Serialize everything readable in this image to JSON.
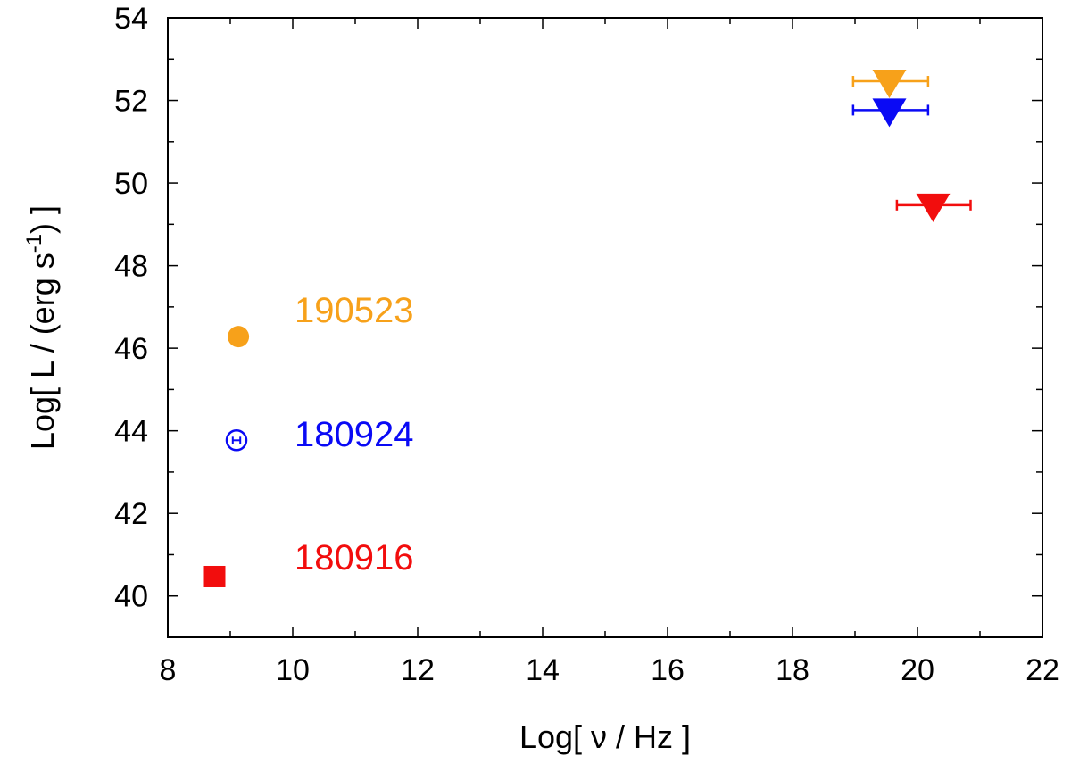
{
  "chart_data": {
    "type": "scatter",
    "xlabel": "Log[ ν / Hz ]",
    "ylabel": {
      "main": "Log[ L / (erg s",
      "sup": "-1",
      "end": ") ]"
    },
    "xlim": [
      8,
      22
    ],
    "ylim": [
      39,
      54
    ],
    "x_ticks": [
      8,
      10,
      12,
      14,
      16,
      18,
      20,
      22
    ],
    "y_ticks": [
      40,
      42,
      44,
      46,
      48,
      50,
      52,
      54
    ],
    "grid": false,
    "series": [
      {
        "name": "190523",
        "color": "#f7a11a",
        "radio": {
          "x": 9.13,
          "y": 46.28,
          "marker": "filled-circle"
        },
        "upper_limit": {
          "x": 19.55,
          "y": 52.4,
          "xerr": [
            18.97,
            20.17
          ],
          "marker": "triangle-down"
        }
      },
      {
        "name": "180924",
        "color": "#0a0af5",
        "radio": {
          "x": 9.1,
          "y": 43.77,
          "marker": "open-circle",
          "xerr": [
            9.04,
            9.16
          ]
        },
        "upper_limit": {
          "x": 19.55,
          "y": 51.7,
          "xerr": [
            18.97,
            20.17
          ],
          "marker": "triangle-down"
        }
      },
      {
        "name": "180916",
        "color": "#f20d0d",
        "radio": {
          "x": 8.75,
          "y": 40.47,
          "marker": "filled-square"
        },
        "upper_limit": {
          "x": 20.25,
          "y": 49.4,
          "xerr": [
            19.67,
            20.85
          ],
          "marker": "triangle-down"
        }
      }
    ]
  }
}
